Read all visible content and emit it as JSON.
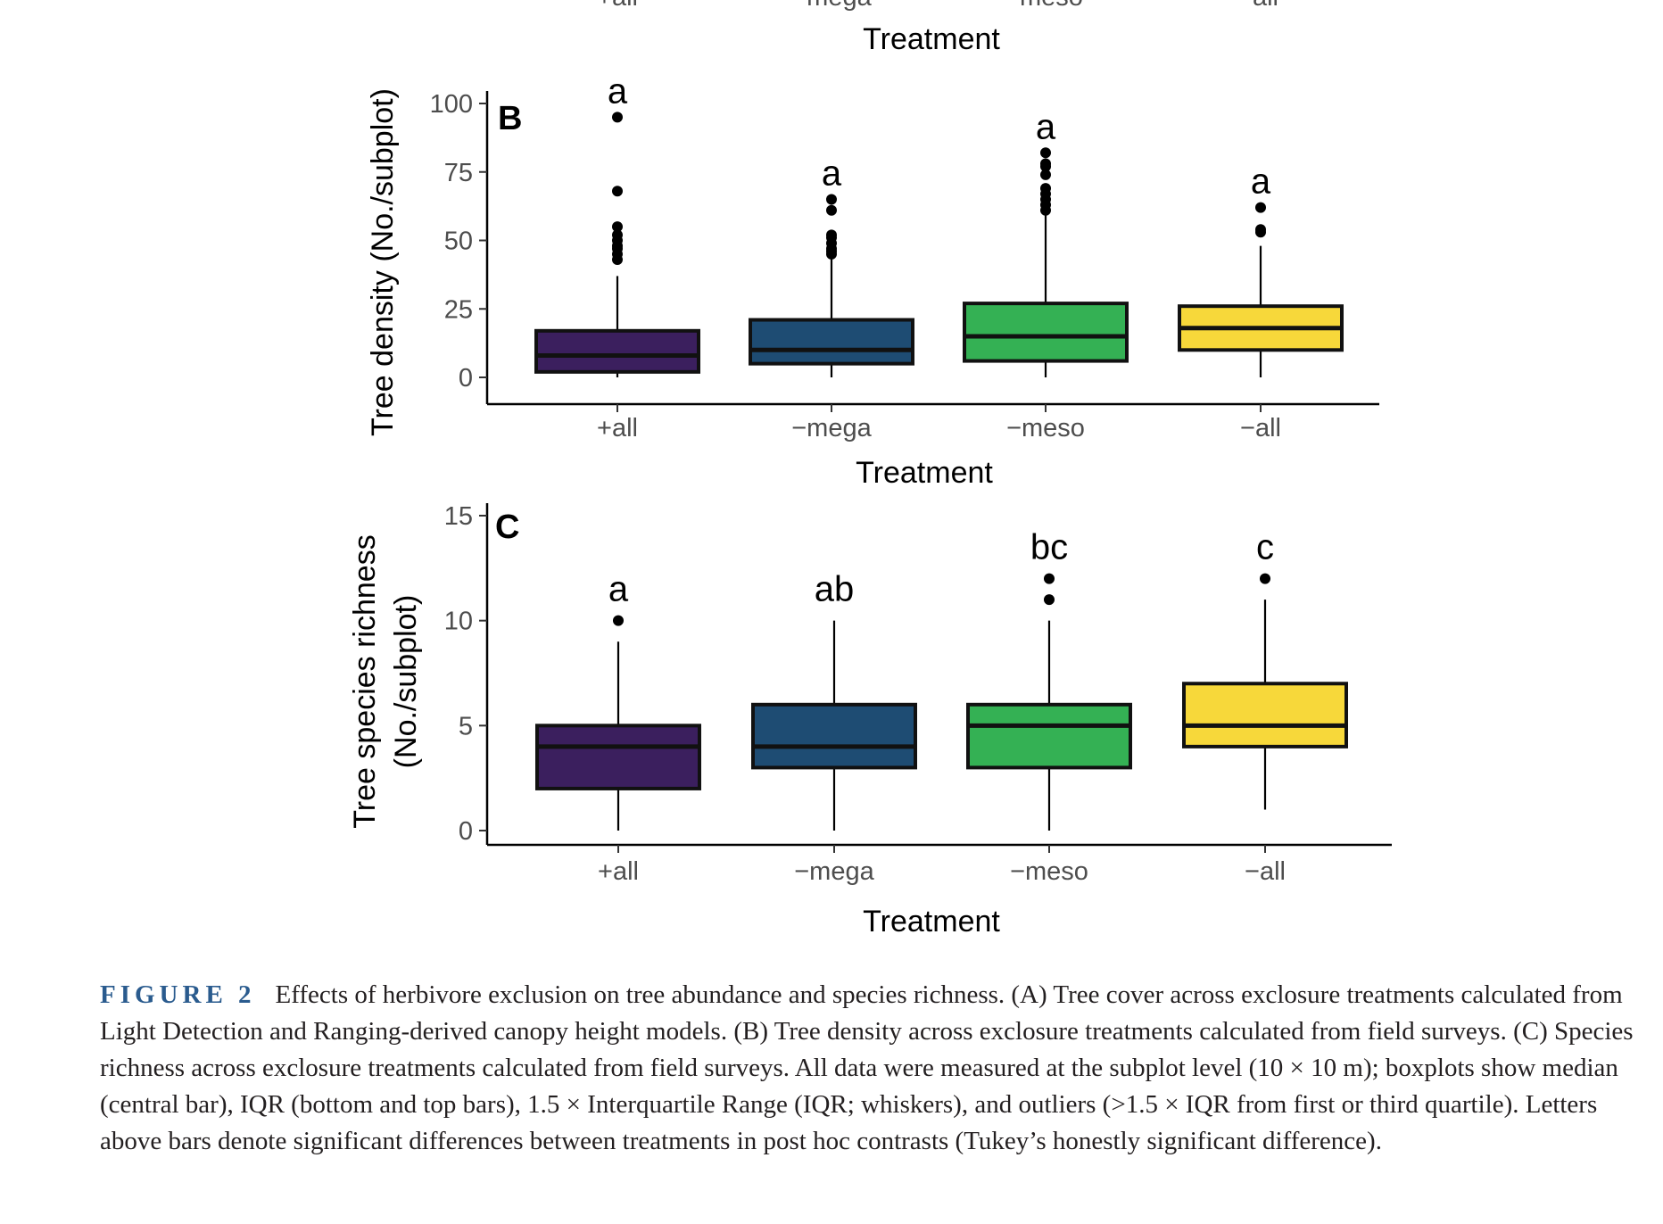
{
  "top_fragment": {
    "tick_labels": [
      "+all",
      "−mega",
      "−meso",
      "−all"
    ],
    "xlabel": "Treatment"
  },
  "chart_data": [
    {
      "panel": "B",
      "type": "boxplot",
      "title": "",
      "xlabel": "Treatment",
      "ylabel": "Tree density (No./subplot)",
      "ylim": [
        0,
        100
      ],
      "yticks": [
        0,
        25,
        50,
        75,
        100
      ],
      "categories": [
        "+all",
        "−mega",
        "−meso",
        "−all"
      ],
      "colors": [
        "#3b1f5e",
        "#1e4c73",
        "#34b154",
        "#f7d83a"
      ],
      "boxes": [
        {
          "category": "+all",
          "whisker_low": 0,
          "q1": 2,
          "median": 8,
          "q3": 17,
          "whisker_high": 37,
          "outliers": [
            43,
            45,
            47,
            48,
            50,
            52,
            55,
            68,
            95
          ],
          "letter": "a"
        },
        {
          "category": "−mega",
          "whisker_low": 0,
          "q1": 5,
          "median": 10,
          "q3": 21,
          "whisker_high": 44,
          "outliers": [
            45,
            46,
            47,
            49,
            51,
            52,
            61,
            65
          ],
          "letter": "a"
        },
        {
          "category": "−meso",
          "whisker_low": 0,
          "q1": 6,
          "median": 15,
          "q3": 27,
          "whisker_high": 60,
          "outliers": [
            61,
            63,
            65,
            67,
            69,
            74,
            77,
            78,
            82
          ],
          "letter": "a"
        },
        {
          "category": "−all",
          "whisker_low": 0,
          "q1": 10,
          "median": 18,
          "q3": 26,
          "whisker_high": 48,
          "outliers": [
            53,
            54,
            62
          ],
          "letter": "a"
        }
      ]
    },
    {
      "panel": "C",
      "type": "boxplot",
      "title": "",
      "xlabel": "Treatment",
      "ylabel": [
        "Tree species richness",
        "(No./subplot)"
      ],
      "ylim": [
        0,
        15
      ],
      "yticks": [
        0,
        5,
        10,
        15
      ],
      "categories": [
        "+all",
        "−mega",
        "−meso",
        "−all"
      ],
      "colors": [
        "#3b1f5e",
        "#1e4c73",
        "#34b154",
        "#f7d83a"
      ],
      "boxes": [
        {
          "category": "+all",
          "whisker_low": 0,
          "q1": 2,
          "median": 4,
          "q3": 5,
          "whisker_high": 9,
          "outliers": [
            10
          ],
          "letter": "a"
        },
        {
          "category": "−mega",
          "whisker_low": 0,
          "q1": 3,
          "median": 4,
          "q3": 6,
          "whisker_high": 10,
          "outliers": [],
          "letter": "ab"
        },
        {
          "category": "−meso",
          "whisker_low": 0,
          "q1": 3,
          "median": 5,
          "q3": 6,
          "whisker_high": 10,
          "outliers": [
            11,
            12
          ],
          "letter": "bc"
        },
        {
          "category": "−all",
          "whisker_low": 1,
          "q1": 4,
          "median": 5,
          "q3": 7,
          "whisker_high": 11,
          "outliers": [
            12
          ],
          "letter": "c"
        }
      ]
    }
  ],
  "caption": {
    "label": "FIGURE 2",
    "text": "Effects of herbivore exclusion on tree abundance and species richness. (A) Tree cover across exclosure treatments calculated from Light Detection and Ranging-derived canopy height models. (B) Tree density across exclosure treatments calculated from field surveys. (C) Species richness across exclosure treatments calculated from field surveys. All data were measured at the subplot level (10 × 10 m); boxplots show median (central bar), IQR (bottom and top bars), 1.5 × Interquartile Range (IQR; whiskers), and outliers (>1.5 × IQR from first or third quartile). Letters above bars denote significant differences between treatments in post hoc contrasts (Tukey’s honestly significant difference)."
  }
}
